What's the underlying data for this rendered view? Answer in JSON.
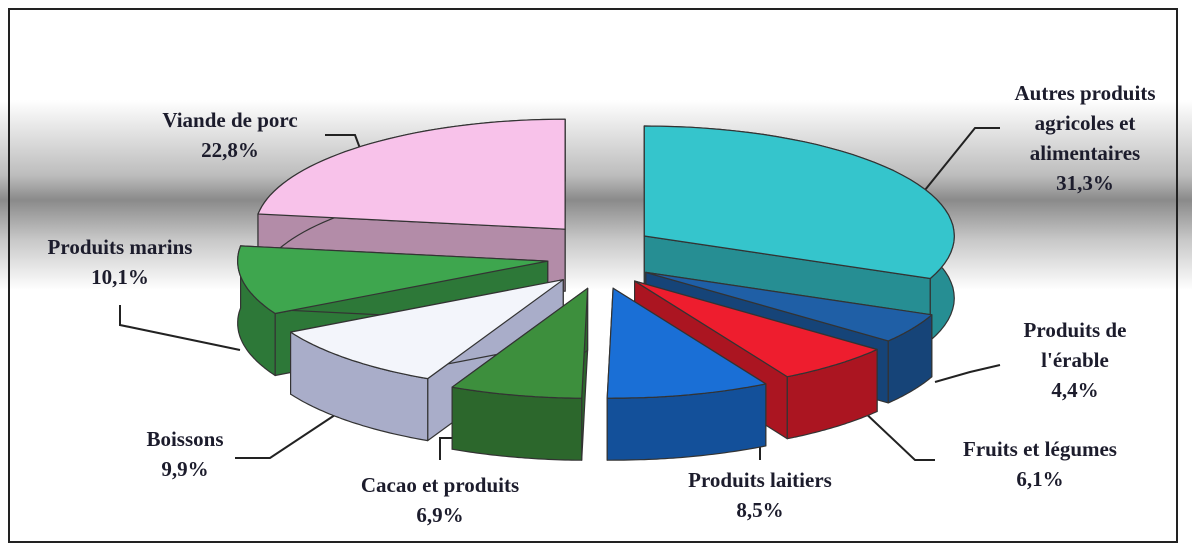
{
  "chart_data": {
    "type": "pie",
    "categories": [
      "Autres produits agricoles et alimentaires",
      "Produits de l'érable",
      "Fruits et légumes",
      "Produits laitiers",
      "Cacao et produits",
      "Boissons",
      "Produits marins",
      "Viande de porc"
    ],
    "values": [
      31.3,
      4.4,
      6.1,
      8.5,
      6.9,
      9.9,
      10.1,
      22.8
    ],
    "value_labels": [
      "31,3%",
      "4,4%",
      "6,1%",
      "8,5%",
      "6,9%",
      "9,9%",
      "10,1%",
      "22,8%"
    ],
    "colors": [
      "#35c5cc",
      "#1f5fa6",
      "#ee1d2e",
      "#1a6fd6",
      "#3d8f3d",
      "#f3f5fb",
      "#3ea64e",
      "#f8c2ea"
    ]
  }
}
